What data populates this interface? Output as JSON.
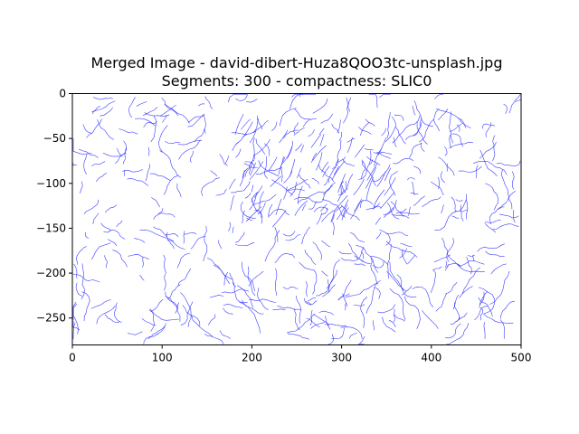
{
  "chart_data": {
    "type": "image",
    "title_line1": "Merged Image - david-dibert-Huza8QOO3tc-unsplash.jpg",
    "title_line2": "Segments: 300 - compactness: SLIC0",
    "xlim": [
      0,
      500
    ],
    "ylim": [
      280,
      0
    ],
    "x_ticks": [
      0,
      100,
      200,
      300,
      400,
      500
    ],
    "y_ticks": [
      0,
      -50,
      -100,
      -150,
      -200,
      -250
    ],
    "y_tick_labels": [
      "0",
      "−50",
      "−100",
      "−150",
      "−200",
      "−250"
    ],
    "grid": false,
    "legend": "none",
    "boundary_color": "#3a3aff",
    "segments": 300
  }
}
